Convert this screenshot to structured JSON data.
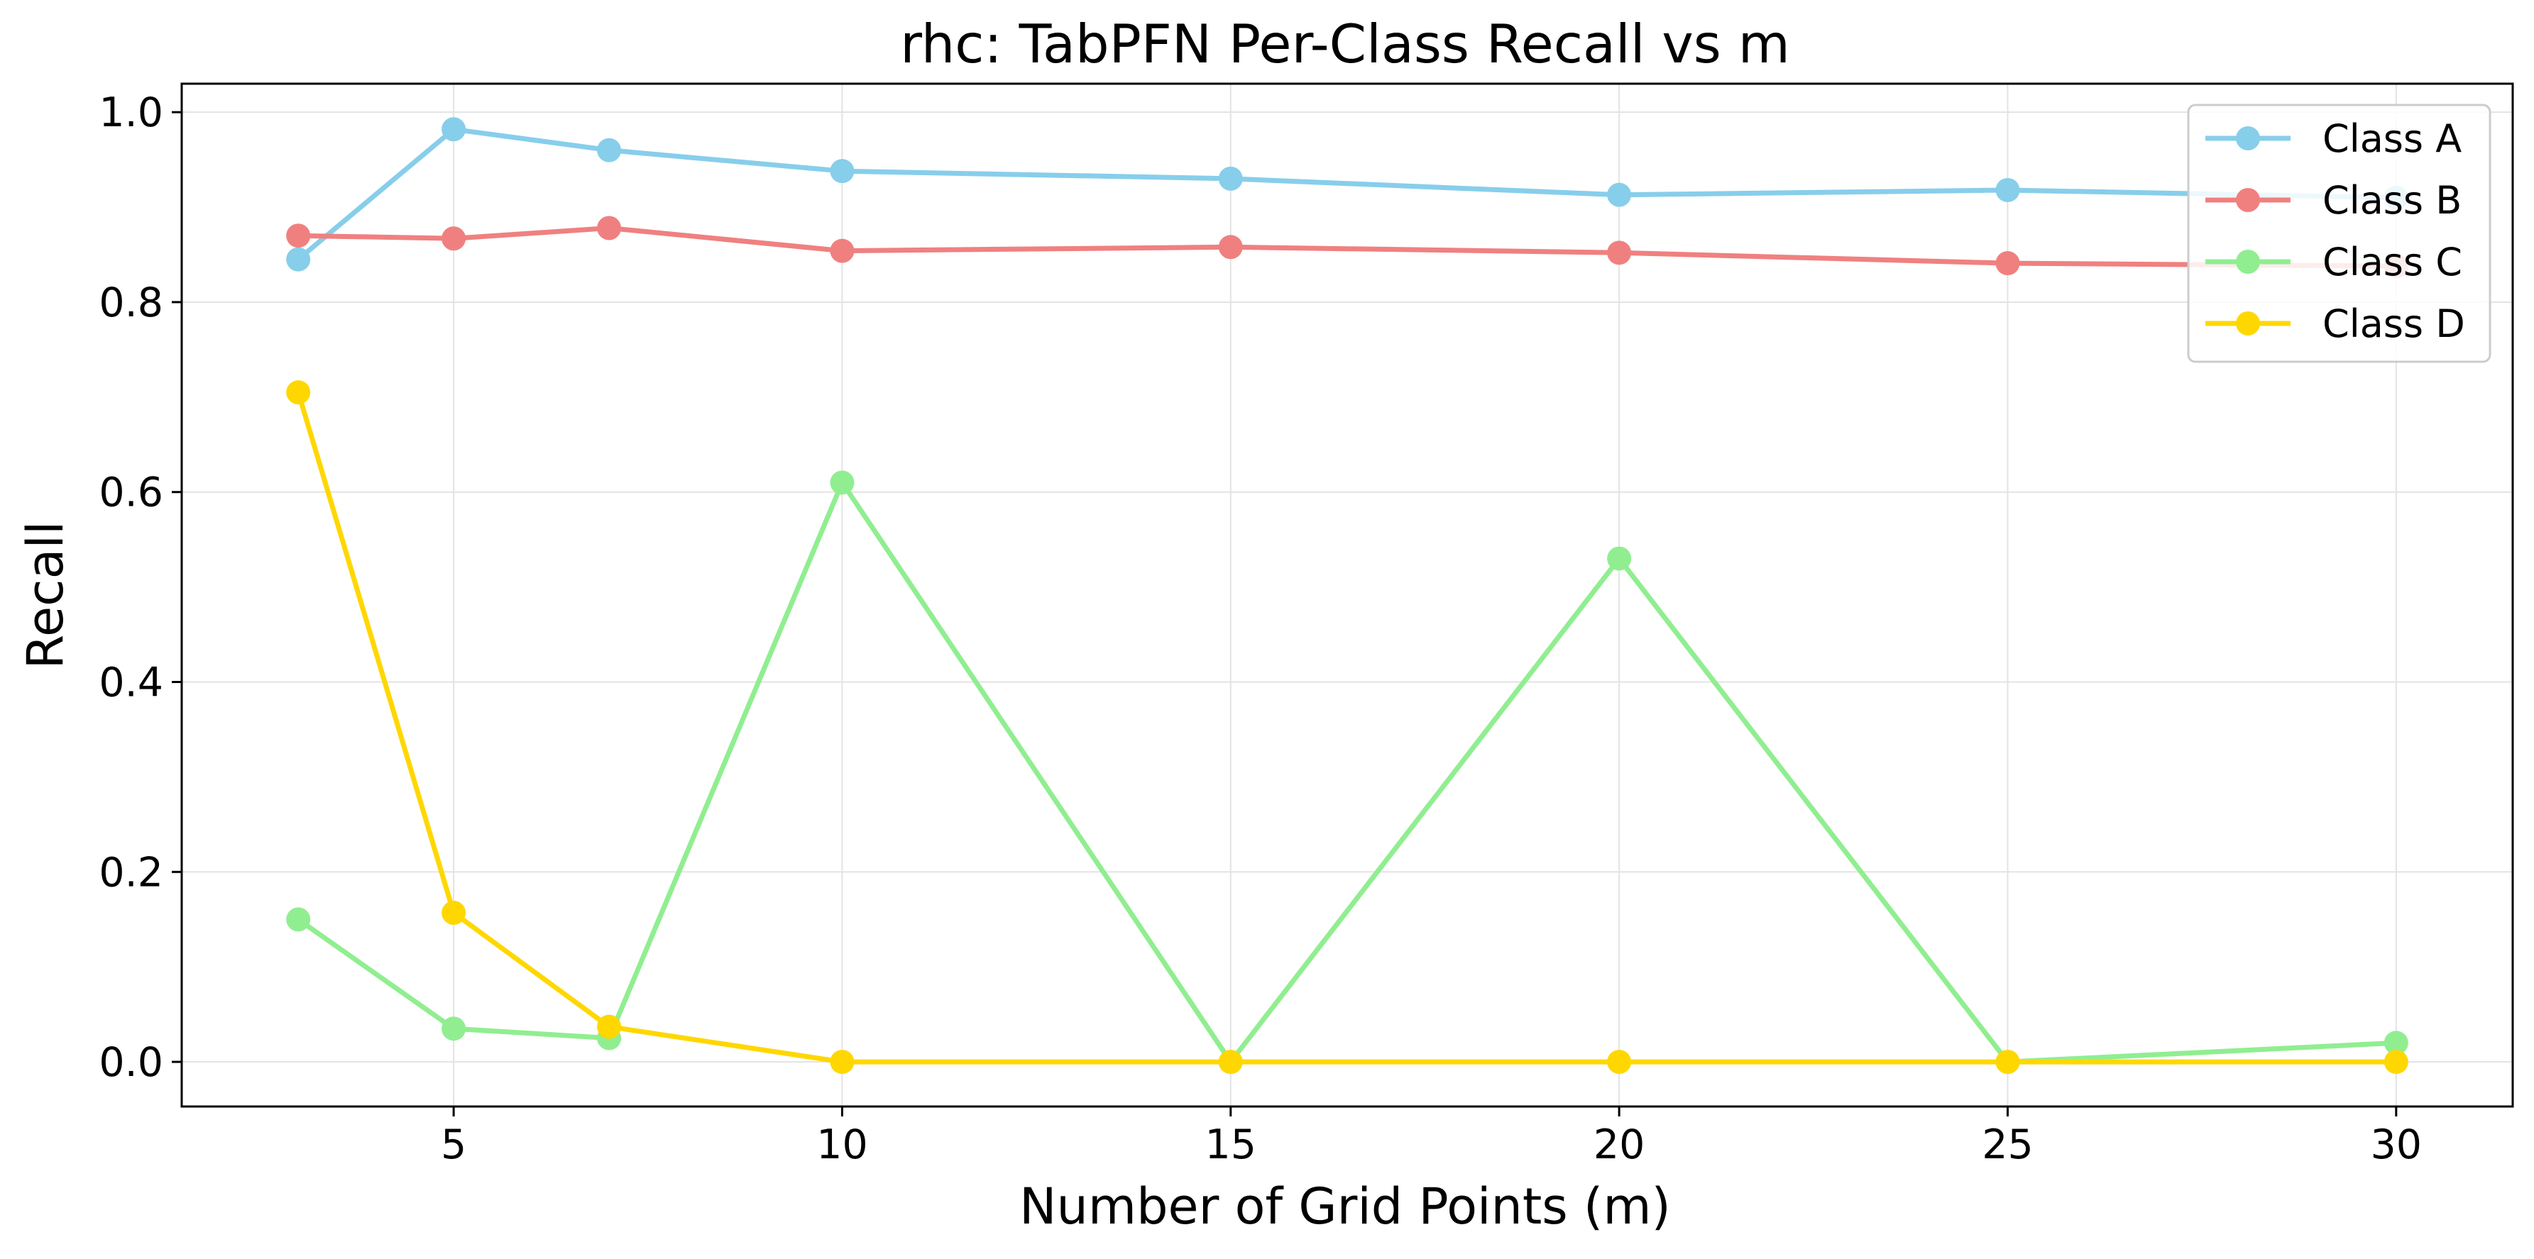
{
  "chart_data": {
    "type": "line",
    "title": "rhc: TabPFN Per-Class Recall vs m",
    "xlabel": "Number of Grid Points (m)",
    "ylabel": "Recall",
    "x": [
      3,
      5,
      7,
      10,
      15,
      20,
      25,
      30
    ],
    "xlim": [
      1.5,
      31.5
    ],
    "ylim": [
      -0.047,
      1.03
    ],
    "xticks": [
      5,
      10,
      15,
      20,
      25,
      30
    ],
    "yticks": [
      0.0,
      0.2,
      0.4,
      0.6,
      0.8,
      1.0
    ],
    "xtick_labels": [
      "5",
      "10",
      "15",
      "20",
      "25",
      "30"
    ],
    "ytick_labels": [
      "0.0",
      "0.2",
      "0.4",
      "0.6",
      "0.8",
      "1.0"
    ],
    "grid": true,
    "legend_position": "top-right",
    "series": [
      {
        "name": "Class A",
        "color": "#87CEEB",
        "values": [
          0.845,
          0.982,
          0.96,
          0.938,
          0.93,
          0.913,
          0.918,
          0.91
        ]
      },
      {
        "name": "Class B",
        "color": "#F08080",
        "values": [
          0.87,
          0.867,
          0.878,
          0.854,
          0.858,
          0.852,
          0.841,
          0.838
        ]
      },
      {
        "name": "Class C",
        "color": "#90EE90",
        "values": [
          0.15,
          0.035,
          0.025,
          0.61,
          0.0,
          0.53,
          0.0,
          0.02
        ]
      },
      {
        "name": "Class D",
        "color": "#FFD700",
        "values": [
          0.705,
          0.157,
          0.037,
          0.0,
          0.0,
          0.0,
          0.0,
          0.0
        ]
      }
    ]
  }
}
